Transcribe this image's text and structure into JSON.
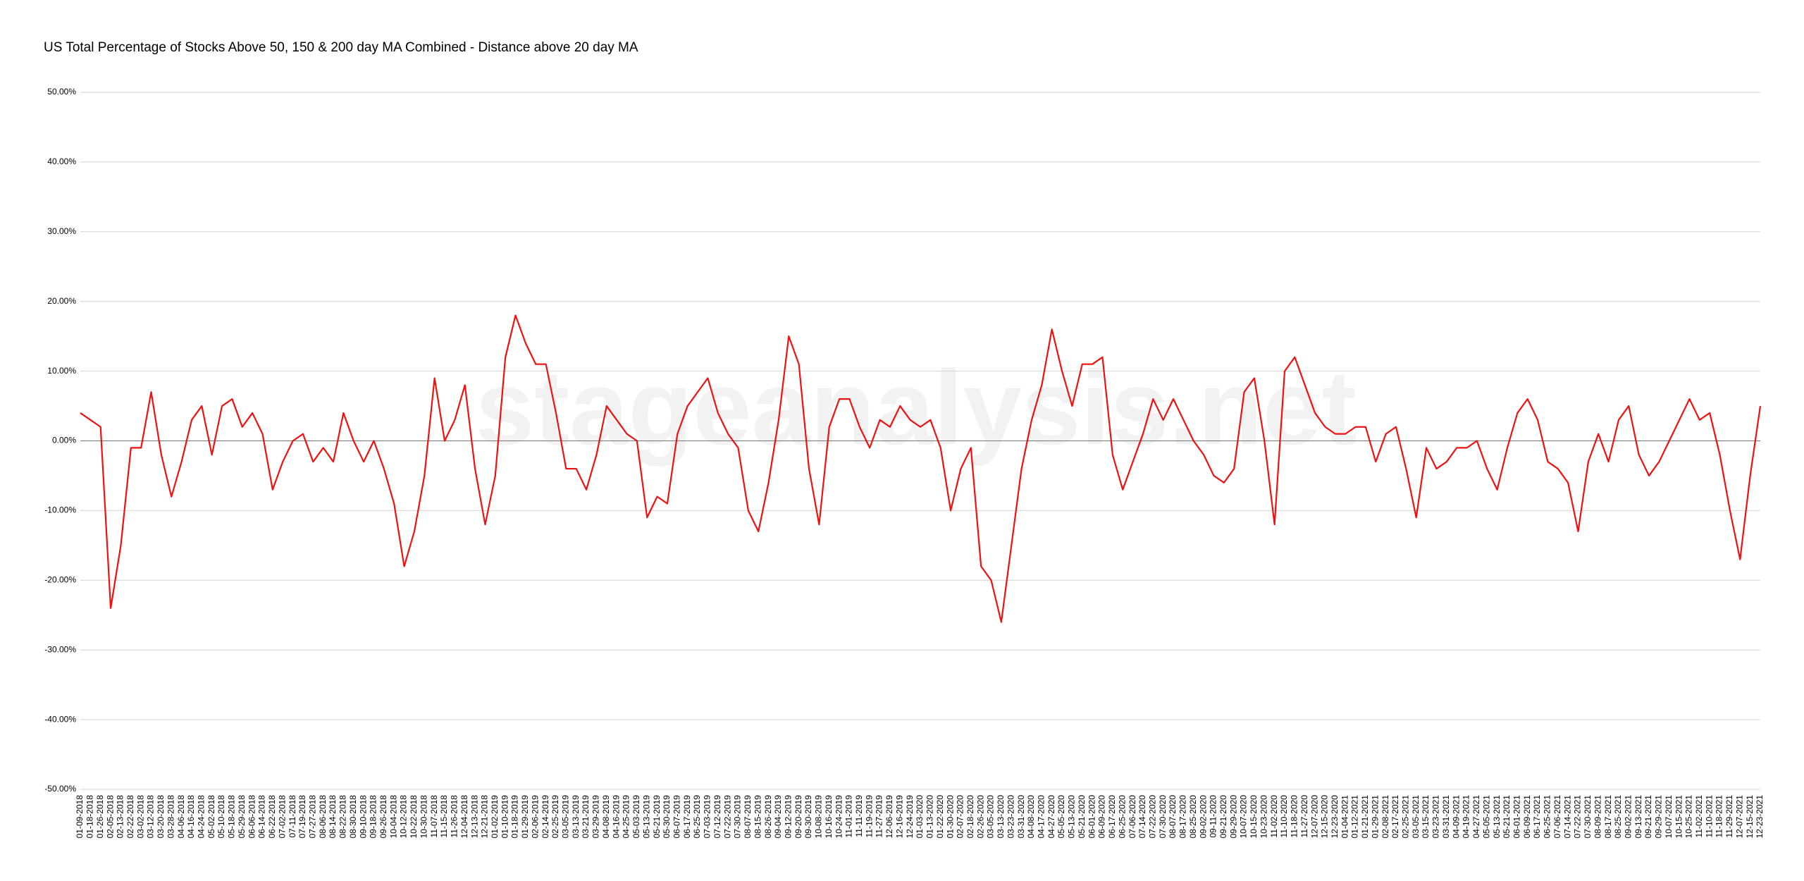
{
  "chart_data": {
    "type": "line",
    "title": "US Total Percentage of Stocks Above 50, 150 & 200 day MA Combined - Distance above 20 day MA",
    "watermark": "stageanalysis.net",
    "categories": [
      "01-09-2018",
      "01-18-2018",
      "01-26-2018",
      "02-05-2018",
      "02-13-2018",
      "02-22-2018",
      "03-02-2018",
      "03-12-2018",
      "03-20-2018",
      "03-28-2018",
      "04-06-2018",
      "04-16-2018",
      "04-24-2018",
      "05-02-2018",
      "05-10-2018",
      "05-18-2018",
      "05-29-2018",
      "06-06-2018",
      "06-14-2018",
      "06-22-2018",
      "07-02-2018",
      "07-11-2018",
      "07-19-2018",
      "07-27-2018",
      "08-06-2018",
      "08-14-2018",
      "08-22-2018",
      "08-30-2018",
      "09-10-2018",
      "09-18-2018",
      "09-26-2018",
      "10-04-2018",
      "10-12-2018",
      "10-22-2018",
      "10-30-2018",
      "11-07-2018",
      "11-15-2018",
      "11-26-2018",
      "12-04-2018",
      "12-13-2018",
      "12-21-2018",
      "01-02-2019",
      "01-10-2019",
      "01-18-2019",
      "01-29-2019",
      "02-06-2019",
      "02-14-2019",
      "02-25-2019",
      "03-05-2019",
      "03-13-2019",
      "03-21-2019",
      "03-29-2019",
      "04-08-2019",
      "04-16-2019",
      "04-25-2019",
      "05-03-2019",
      "05-13-2019",
      "05-21-2019",
      "05-30-2019",
      "06-07-2019",
      "06-17-2019",
      "06-25-2019",
      "07-03-2019",
      "07-12-2019",
      "07-22-2019",
      "07-30-2019",
      "08-07-2019",
      "08-15-2019",
      "08-26-2019",
      "09-04-2019",
      "09-12-2019",
      "09-20-2019",
      "09-30-2019",
      "10-08-2019",
      "10-16-2019",
      "10-24-2019",
      "11-01-2019",
      "11-11-2019",
      "11-19-2019",
      "11-27-2019",
      "12-06-2019",
      "12-16-2019",
      "12-24-2019",
      "01-03-2020",
      "01-13-2020",
      "01-22-2020",
      "01-30-2020",
      "02-07-2020",
      "02-18-2020",
      "02-26-2020",
      "03-05-2020",
      "03-13-2020",
      "03-23-2020",
      "03-31-2020",
      "04-08-2020",
      "04-17-2020",
      "04-27-2020",
      "05-05-2020",
      "05-13-2020",
      "05-21-2020",
      "06-01-2020",
      "06-09-2020",
      "06-17-2020",
      "06-25-2020",
      "07-06-2020",
      "07-14-2020",
      "07-22-2020",
      "07-30-2020",
      "08-07-2020",
      "08-17-2020",
      "08-25-2020",
      "09-02-2020",
      "09-11-2020",
      "09-21-2020",
      "09-29-2020",
      "10-07-2020",
      "10-15-2020",
      "10-23-2020",
      "11-02-2020",
      "11-10-2020",
      "11-18-2020",
      "11-27-2020",
      "12-07-2020",
      "12-15-2020",
      "12-23-2020",
      "01-04-2021",
      "01-12-2021",
      "01-21-2021",
      "01-29-2021",
      "02-08-2021",
      "02-17-2021",
      "02-25-2021",
      "03-05-2021",
      "03-15-2021",
      "03-23-2021",
      "03-31-2021",
      "04-09-2021",
      "04-19-2021",
      "04-27-2021",
      "05-05-2021",
      "05-13-2021",
      "05-21-2021",
      "06-01-2021",
      "06-09-2021",
      "06-17-2021",
      "06-25-2021",
      "07-06-2021",
      "07-14-2021",
      "07-22-2021",
      "07-30-2021",
      "08-09-2021",
      "08-17-2021",
      "08-25-2021",
      "09-02-2021",
      "09-13-2021",
      "09-21-2021",
      "09-29-2021",
      "10-07-2021",
      "10-15-2021",
      "10-25-2021",
      "11-02-2021",
      "11-10-2021",
      "11-18-2021",
      "11-29-2021",
      "12-07-2021",
      "12-15-2021",
      "12-23-2021"
    ],
    "values": [
      4,
      3,
      2,
      -24,
      -15,
      -1,
      -1,
      7,
      -2,
      -8,
      -3,
      3,
      5,
      -2,
      5,
      6,
      2,
      4,
      1,
      -7,
      -3,
      0,
      1,
      -3,
      -1,
      -3,
      4,
      0,
      -3,
      0,
      -4,
      -9,
      -18,
      -13,
      -5,
      9,
      0,
      3,
      8,
      -4,
      -12,
      -5,
      12,
      18,
      14,
      11,
      11,
      4,
      -4,
      -4,
      -7,
      -2,
      5,
      3,
      1,
      0,
      -11,
      -8,
      -9,
      1,
      5,
      7,
      9,
      4,
      1,
      -1,
      -10,
      -13,
      -6,
      3,
      15,
      11,
      -4,
      -12,
      2,
      6,
      6,
      2,
      -1,
      3,
      2,
      5,
      3,
      2,
      3,
      -1,
      -10,
      -4,
      -1,
      -18,
      -20,
      -26,
      -15,
      -4,
      3,
      8,
      16,
      10,
      5,
      11,
      11,
      12,
      -2,
      -7,
      -3,
      1,
      6,
      3,
      6,
      3,
      0,
      -2,
      -5,
      -6,
      -4,
      7,
      9,
      0,
      -12,
      10,
      12,
      8,
      4,
      2,
      1,
      1,
      2,
      2,
      -3,
      1,
      2,
      -4,
      -11,
      -1,
      -4,
      -3,
      -1,
      -1,
      0,
      -4,
      -7,
      -1,
      4,
      6,
      3,
      -3,
      -4,
      -6,
      -13,
      -3,
      1,
      -3,
      3,
      5,
      -2,
      -5,
      -3,
      0,
      3,
      6,
      3,
      4,
      -2,
      -10,
      -17,
      -5,
      5
    ],
    "color": "#ee1111",
    "ylim": [
      -50,
      50
    ],
    "yticks": [
      {
        "value": -50,
        "label": "-50.00%"
      },
      {
        "value": -40,
        "label": "-40.00%"
      },
      {
        "value": -30,
        "label": "-30.00%"
      },
      {
        "value": -20,
        "label": "-20.00%"
      },
      {
        "value": -10,
        "label": "-10.00%"
      },
      {
        "value": 0,
        "label": "0.00%"
      },
      {
        "value": 10,
        "label": "10.00%"
      },
      {
        "value": 20,
        "label": "20.00%"
      },
      {
        "value": 30,
        "label": "30.00%"
      },
      {
        "value": 40,
        "label": "40.00%"
      },
      {
        "value": 50,
        "label": "50.00%"
      }
    ],
    "grid": true
  }
}
